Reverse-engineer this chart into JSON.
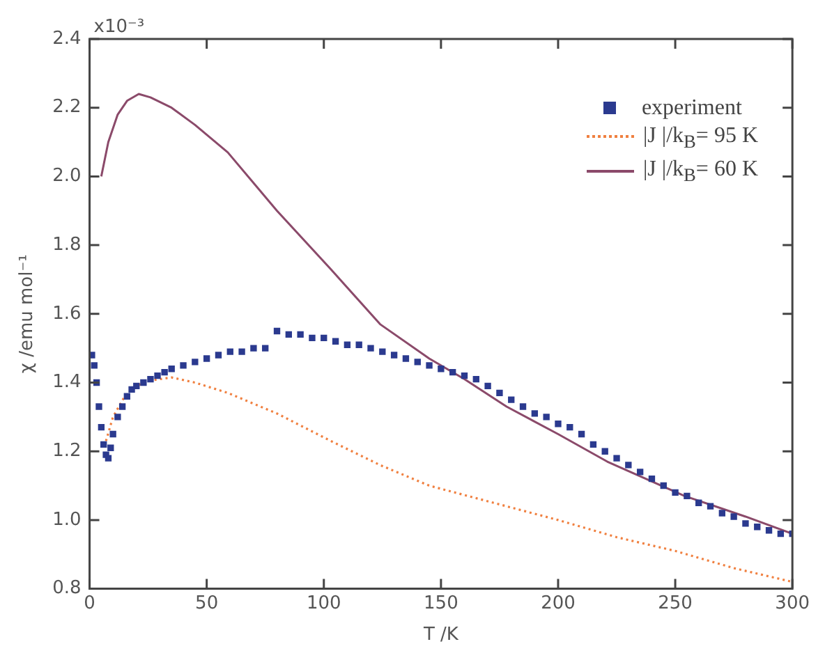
{
  "chart_data": {
    "type": "line",
    "xlabel": "T /K",
    "ylabel": "χ /emu mol⁻¹",
    "xlim": [
      0,
      300
    ],
    "ylim": [
      0.8,
      2.4
    ],
    "xticks": [
      0,
      50,
      100,
      150,
      200,
      250,
      300
    ],
    "yticks": [
      0.8,
      {
        "value": 1,
        "label": "1.0"
      },
      1.2,
      1.4,
      1.6,
      1.8,
      {
        "value": 2,
        "label": "2.0"
      },
      2.2,
      2.4
    ],
    "annotations": [
      "x10⁻³"
    ],
    "grid": false,
    "legend": "top right",
    "series": [
      {
        "name": "experiment",
        "type": "scatter",
        "marker": "square",
        "color": "#2b3a8f",
        "x": [
          1,
          2,
          3,
          4,
          5,
          6,
          7,
          8,
          9,
          10,
          12,
          14,
          16,
          18,
          20,
          23,
          26,
          29,
          32,
          35,
          40,
          45,
          50,
          55,
          60,
          65,
          70,
          75,
          80,
          85,
          90,
          95,
          100,
          105,
          110,
          115,
          120,
          125,
          130,
          135,
          140,
          145,
          150,
          155,
          160,
          165,
          170,
          175,
          180,
          185,
          190,
          195,
          200,
          205,
          210,
          215,
          220,
          225,
          230,
          235,
          240,
          245,
          250,
          255,
          260,
          265,
          270,
          275,
          280,
          285,
          290,
          295,
          300
        ],
        "values": [
          1.48,
          1.45,
          1.4,
          1.33,
          1.27,
          1.22,
          1.19,
          1.18,
          1.21,
          1.25,
          1.3,
          1.33,
          1.36,
          1.38,
          1.39,
          1.4,
          1.41,
          1.42,
          1.43,
          1.44,
          1.45,
          1.46,
          1.47,
          1.48,
          1.49,
          1.49,
          1.5,
          1.5,
          1.55,
          1.54,
          1.54,
          1.53,
          1.53,
          1.52,
          1.51,
          1.51,
          1.5,
          1.49,
          1.48,
          1.47,
          1.46,
          1.45,
          1.44,
          1.43,
          1.42,
          1.41,
          1.39,
          1.37,
          1.35,
          1.33,
          1.31,
          1.3,
          1.28,
          1.27,
          1.25,
          1.22,
          1.2,
          1.18,
          1.16,
          1.14,
          1.12,
          1.1,
          1.08,
          1.07,
          1.05,
          1.04,
          1.02,
          1.01,
          0.99,
          0.98,
          0.97,
          0.96,
          0.96
        ]
      },
      {
        "name": "|J |/k$_{B}$= 95 K",
        "type": "line",
        "marker": "none",
        "line_style": "dotted",
        "color": "#f08040",
        "x": [
          7,
          10,
          15,
          20,
          25,
          30,
          35,
          45,
          59,
          80,
          103,
          124,
          145,
          167,
          200,
          225,
          250,
          275,
          300
        ],
        "values": [
          1.23,
          1.3,
          1.36,
          1.39,
          1.405,
          1.41,
          1.415,
          1.4,
          1.37,
          1.31,
          1.23,
          1.16,
          1.1,
          1.06,
          1.0,
          0.95,
          0.91,
          0.86,
          0.82
        ]
      },
      {
        "name": "|J |/k$_{B}$= 60 K",
        "type": "line",
        "marker": "none",
        "line_style": "solid",
        "color": "#8b4a6a",
        "x": [
          5,
          8,
          12,
          16,
          21,
          26,
          35,
          45,
          59,
          80,
          103,
          124,
          145,
          160,
          178,
          200,
          221,
          254,
          280,
          300
        ],
        "values": [
          2.0,
          2.1,
          2.18,
          2.22,
          2.24,
          2.23,
          2.2,
          2.15,
          2.07,
          1.9,
          1.73,
          1.57,
          1.47,
          1.41,
          1.33,
          1.25,
          1.17,
          1.07,
          1.01,
          0.96
        ]
      }
    ]
  }
}
